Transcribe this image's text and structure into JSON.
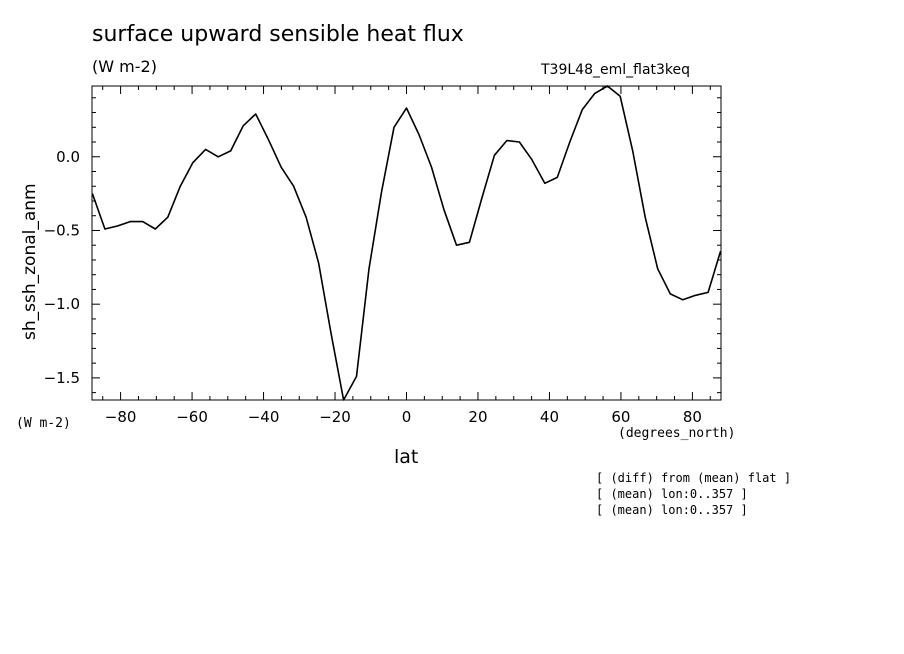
{
  "chart_data": {
    "type": "line",
    "title": "surface upward sensible heat flux",
    "subtitle": "(W m-2)",
    "run_label": "T39L48_eml_flat3keq",
    "ylabel": "sh_ssh_zonal_anm",
    "y_units": "(W m-2)",
    "xlabel": "lat",
    "x_units": "(degrees_north)",
    "xlim": [
      -88,
      88
    ],
    "ylim": [
      -1.65,
      0.48
    ],
    "x_ticks": [
      -80,
      -60,
      -40,
      -20,
      0,
      20,
      40,
      60,
      80
    ],
    "x_tick_labels": [
      "−80",
      "−60",
      "−40",
      "−20",
      "0",
      "20",
      "40",
      "60",
      "80"
    ],
    "y_ticks": [
      -1.5,
      -1.0,
      -0.5,
      0.0
    ],
    "y_tick_labels": [
      "−1.5",
      "−1.0",
      "−0.5",
      "0.0"
    ],
    "grid": false,
    "series": [
      {
        "color": "#000000",
        "x": [
          -87.9,
          -84.4,
          -80.9,
          -77.3,
          -73.8,
          -70.3,
          -66.8,
          -63.3,
          -59.8,
          -56.2,
          -52.7,
          -49.2,
          -45.7,
          -42.2,
          -38.7,
          -35.1,
          -31.6,
          -28.1,
          -24.6,
          -21.1,
          -17.6,
          -14.0,
          -10.5,
          -7.0,
          -3.5,
          0.0,
          3.5,
          7.0,
          10.5,
          14.0,
          17.6,
          21.1,
          24.6,
          28.1,
          31.6,
          35.1,
          38.7,
          42.2,
          45.7,
          49.2,
          52.7,
          56.2,
          59.8,
          63.3,
          66.8,
          70.3,
          73.8,
          77.3,
          80.9,
          84.4,
          87.9
        ],
        "values": [
          -0.25,
          -0.49,
          -0.47,
          -0.44,
          -0.44,
          -0.49,
          -0.41,
          -0.2,
          -0.04,
          0.05,
          0.0,
          0.04,
          0.21,
          0.29,
          0.12,
          -0.07,
          -0.2,
          -0.41,
          -0.72,
          -1.2,
          -1.65,
          -1.49,
          -0.76,
          -0.24,
          0.2,
          0.33,
          0.15,
          -0.07,
          -0.36,
          -0.6,
          -0.58,
          -0.28,
          0.01,
          0.11,
          0.1,
          -0.02,
          -0.18,
          -0.14,
          0.1,
          0.32,
          0.43,
          0.48,
          0.41,
          0.04,
          -0.41,
          -0.76,
          -0.93,
          -0.97,
          -0.94,
          -0.92,
          -0.64
        ]
      }
    ]
  },
  "notes": [
    "[ (diff) from (mean) flat ]",
    "[ (mean) lon:0..357 ]",
    "[ (mean) lon:0..357 ]"
  ]
}
